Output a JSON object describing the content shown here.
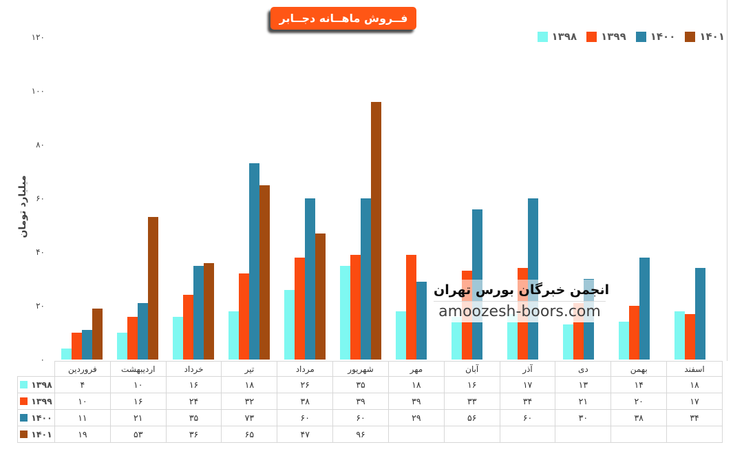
{
  "title": "فــروش ماهــانه دجــابر",
  "y_axis": {
    "label": "میلیارد تومان",
    "tick_values": [
      0,
      20,
      40,
      60,
      80,
      100,
      120
    ],
    "tick_labels": [
      "۰",
      "۲۰",
      "۴۰",
      "۶۰",
      "۸۰",
      "۱۰۰",
      "۱۲۰"
    ]
  },
  "chart_data": {
    "type": "bar",
    "title": "فــروش ماهــانه دجــابر",
    "ylabel": "میلیارد تومان",
    "ylim": [
      0,
      120
    ],
    "grid": false,
    "legend_position": "top-right",
    "categories": [
      "فروردین",
      "اردیبهشت",
      "خرداد",
      "تیر",
      "مرداد",
      "شهریور",
      "مهر",
      "آبان",
      "آذر",
      "دی",
      "بهمن",
      "اسفند"
    ],
    "series": [
      {
        "name": "۱۳۹۸",
        "color": "#7ef8f1",
        "values": [
          4,
          10,
          16,
          18,
          26,
          35,
          18,
          16,
          17,
          13,
          14,
          18
        ],
        "display": [
          "۴",
          "۱۰",
          "۱۶",
          "۱۸",
          "۲۶",
          "۳۵",
          "۱۸",
          "۱۶",
          "۱۷",
          "۱۳",
          "۱۴",
          "۱۸"
        ]
      },
      {
        "name": "۱۳۹۹",
        "color": "#fb4b10",
        "values": [
          10,
          16,
          24,
          32,
          38,
          39,
          39,
          33,
          34,
          21,
          20,
          17
        ],
        "display": [
          "۱۰",
          "۱۶",
          "۲۴",
          "۳۲",
          "۳۸",
          "۳۹",
          "۳۹",
          "۳۳",
          "۳۴",
          "۲۱",
          "۲۰",
          "۱۷"
        ]
      },
      {
        "name": "۱۴۰۰",
        "color": "#2d84a5",
        "values": [
          11,
          21,
          35,
          73,
          60,
          60,
          29,
          56,
          60,
          30,
          38,
          34
        ],
        "display": [
          "۱۱",
          "۲۱",
          "۳۵",
          "۷۳",
          "۶۰",
          "۶۰",
          "۲۹",
          "۵۶",
          "۶۰",
          "۳۰",
          "۳۸",
          "۳۴"
        ]
      },
      {
        "name": "۱۴۰۱",
        "color": "#a24b10",
        "values": [
          19,
          53,
          36,
          65,
          47,
          96,
          null,
          null,
          null,
          null,
          null,
          null
        ],
        "display": [
          "۱۹",
          "۵۳",
          "۳۶",
          "۶۵",
          "۴۷",
          "۹۶",
          "",
          "",
          "",
          "",
          "",
          ""
        ]
      }
    ]
  },
  "watermark": {
    "line1": "انجمن خبرگان بورس تهران",
    "line2": "amoozesh-boors.com"
  },
  "colors": {
    "title_bg": "#ff5615",
    "title_text": "#ffffff",
    "legend_text": "#595959",
    "table_border": "#d7d7d7",
    "axis_text": "#404040"
  }
}
